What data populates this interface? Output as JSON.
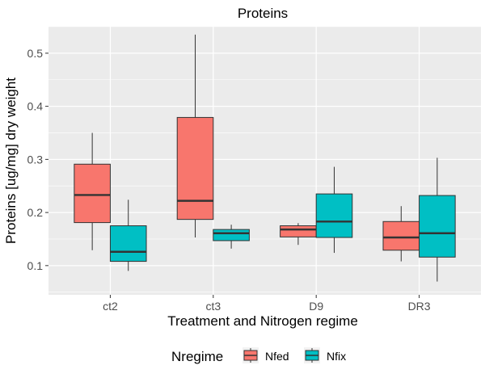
{
  "chart_data": {
    "type": "boxplot",
    "title": "Proteins",
    "xlabel": "Treatment and Nitrogen regime",
    "ylabel": "Proteins [ug/mg] dry weight",
    "ylim": [
      0.045,
      0.55
    ],
    "yticks": [
      "0.1",
      "0.2",
      "0.3",
      "0.4",
      "0.5"
    ],
    "categories": [
      "ct2",
      "ct3",
      "D9",
      "DR3"
    ],
    "grid": true,
    "legend": {
      "title": "Nregime",
      "position": "bottom"
    },
    "series": [
      {
        "name": "Nfed",
        "color": "#F8766D",
        "boxes": [
          {
            "min": 0.129,
            "q1": 0.181,
            "median": 0.233,
            "q3": 0.291,
            "max": 0.35
          },
          {
            "min": 0.153,
            "q1": 0.187,
            "median": 0.222,
            "q3": 0.379,
            "max": 0.535
          },
          {
            "min": 0.139,
            "q1": 0.154,
            "median": 0.168,
            "q3": 0.175,
            "max": 0.18
          },
          {
            "min": 0.108,
            "q1": 0.129,
            "median": 0.153,
            "q3": 0.183,
            "max": 0.212
          }
        ]
      },
      {
        "name": "Nfix",
        "color": "#00BFC4",
        "boxes": [
          {
            "min": 0.09,
            "q1": 0.108,
            "median": 0.126,
            "q3": 0.175,
            "max": 0.224
          },
          {
            "min": 0.132,
            "q1": 0.147,
            "median": 0.161,
            "q3": 0.168,
            "max": 0.177
          },
          {
            "min": 0.124,
            "q1": 0.153,
            "median": 0.183,
            "q3": 0.235,
            "max": 0.286
          },
          {
            "min": 0.07,
            "q1": 0.116,
            "median": 0.161,
            "q3": 0.232,
            "max": 0.303
          }
        ]
      }
    ]
  }
}
